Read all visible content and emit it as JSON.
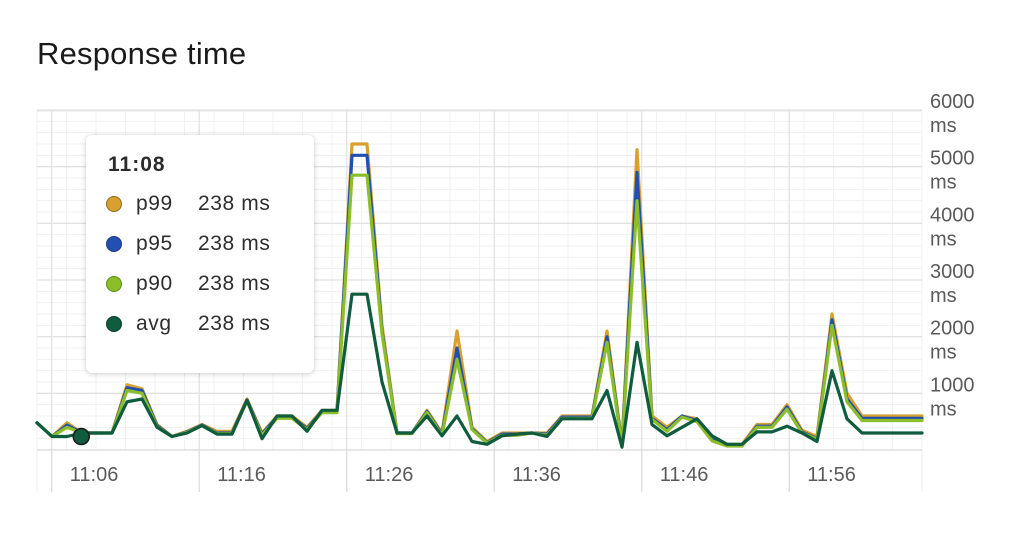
{
  "title": "Response time",
  "tooltip": {
    "time": "11:08",
    "rows": [
      {
        "name": "p99",
        "value": "238 ms",
        "color": "#d9a030",
        "border": "#8a6a1e"
      },
      {
        "name": "p95",
        "value": "238 ms",
        "color": "#2150b0",
        "border": "#173a80"
      },
      {
        "name": "p90",
        "value": "238 ms",
        "color": "#8cbe2a",
        "border": "#5e8a18"
      },
      {
        "name": "avg",
        "value": "238 ms",
        "color": "#0f5c3e",
        "border": "#083a26"
      }
    ]
  },
  "chart_data": {
    "type": "line",
    "title": "Response time",
    "xlabel": "",
    "ylabel": "",
    "x_ticks": [
      "11:06",
      "11:16",
      "11:26",
      "11:36",
      "11:46",
      "11:56"
    ],
    "y_ticks": [
      "1000 ms",
      "2000 ms",
      "3000 ms",
      "4000 ms",
      "5000 ms",
      "6000 ms"
    ],
    "y_tick_values": [
      1000,
      2000,
      3000,
      4000,
      5000,
      6000
    ],
    "ylim": [
      0,
      6000
    ],
    "x_range_minutes": [
      "11:05",
      "12:05"
    ],
    "grid": true,
    "highlight": {
      "x": "11:08",
      "series": "avg",
      "value": 238
    },
    "series": [
      {
        "name": "p99",
        "color": "#d9a030",
        "values": [
          480,
          238,
          480,
          300,
          300,
          300,
          1150,
          1080,
          450,
          238,
          330,
          450,
          330,
          330,
          900,
          300,
          600,
          600,
          400,
          700,
          700,
          5400,
          5400,
          2200,
          300,
          300,
          700,
          300,
          2100,
          400,
          150,
          300,
          300,
          300,
          300,
          600,
          600,
          600,
          2100,
          100,
          5300,
          600,
          400,
          600,
          550,
          200,
          100,
          100,
          450,
          450,
          800,
          350,
          238,
          2400,
          1000,
          600,
          600,
          600,
          600,
          600
        ]
      },
      {
        "name": "p95",
        "color": "#2150b0",
        "values": [
          480,
          238,
          440,
          300,
          300,
          300,
          1100,
          1050,
          430,
          238,
          320,
          440,
          300,
          300,
          880,
          280,
          580,
          580,
          380,
          680,
          680,
          5200,
          5200,
          2100,
          300,
          300,
          680,
          280,
          1800,
          380,
          130,
          280,
          280,
          300,
          280,
          580,
          580,
          580,
          2000,
          80,
          4900,
          560,
          360,
          600,
          520,
          180,
          80,
          80,
          420,
          420,
          760,
          320,
          200,
          2300,
          900,
          560,
          560,
          560,
          560,
          560
        ]
      },
      {
        "name": "p90",
        "color": "#8cbe2a",
        "values": [
          480,
          238,
          400,
          300,
          300,
          300,
          1050,
          1000,
          410,
          238,
          310,
          430,
          290,
          290,
          860,
          260,
          560,
          560,
          360,
          660,
          660,
          4850,
          4850,
          2050,
          290,
          290,
          660,
          260,
          1600,
          360,
          120,
          260,
          260,
          300,
          260,
          560,
          560,
          560,
          1900,
          70,
          4400,
          540,
          330,
          580,
          500,
          160,
          70,
          70,
          400,
          400,
          720,
          300,
          190,
          2200,
          850,
          520,
          520,
          520,
          520,
          520
        ]
      },
      {
        "name": "avg",
        "color": "#0f5c3e",
        "values": [
          480,
          238,
          238,
          300,
          300,
          300,
          850,
          900,
          400,
          238,
          300,
          430,
          280,
          280,
          880,
          200,
          600,
          600,
          330,
          700,
          700,
          2750,
          2750,
          1200,
          300,
          300,
          600,
          250,
          600,
          150,
          100,
          250,
          280,
          300,
          240,
          550,
          550,
          550,
          1050,
          50,
          1900,
          450,
          250,
          400,
          550,
          250,
          100,
          100,
          320,
          320,
          420,
          300,
          150,
          1400,
          550,
          300,
          300,
          300,
          300,
          300
        ]
      }
    ]
  }
}
